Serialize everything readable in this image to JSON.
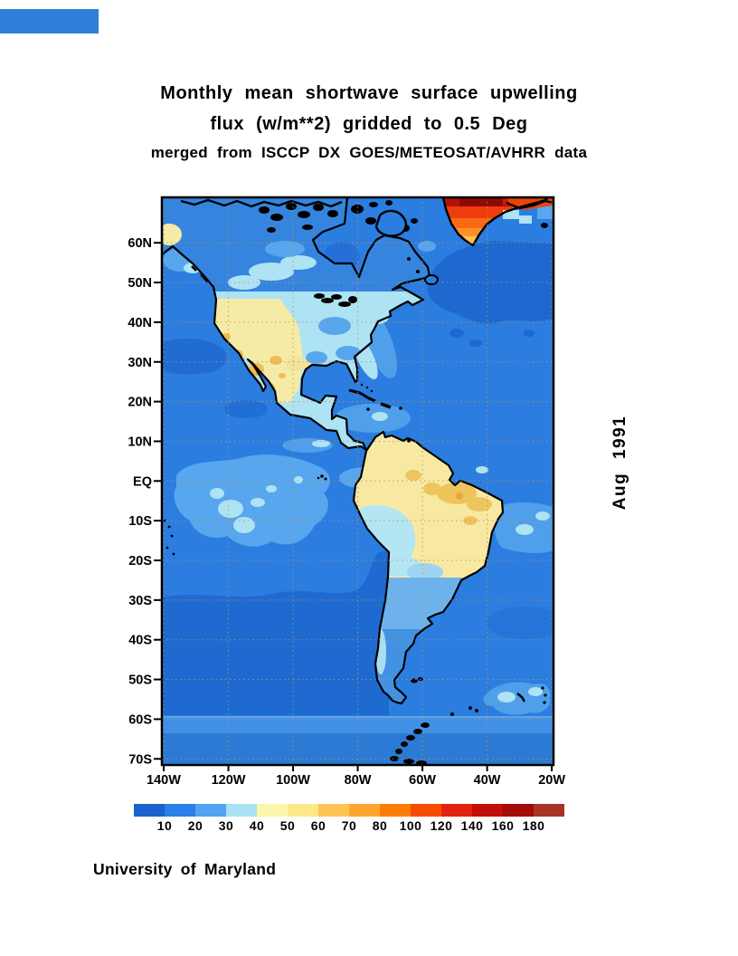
{
  "decor": {
    "top_bar_color": "#2e7fd8"
  },
  "title": {
    "line1": "Monthly mean shortwave surface upwelling",
    "line2": "flux (w/m**2) gridded to 0.5 Deg",
    "line3": "merged from ISCCP DX GOES/METEOSAT/AVHRR data"
  },
  "map": {
    "side_label": "Aug 1991",
    "lat_ticks": [
      "60N",
      "50N",
      "40N",
      "30N",
      "20N",
      "10N",
      "EQ",
      "10S",
      "20S",
      "30S",
      "40S",
      "50S",
      "60S",
      "70S"
    ],
    "lon_ticks": [
      "140W",
      "120W",
      "100W",
      "80W",
      "60W",
      "40W",
      "20W"
    ]
  },
  "colorbar": {
    "tick_labels": [
      "10",
      "20",
      "30",
      "40",
      "50",
      "60",
      "70",
      "80",
      "100",
      "120",
      "140",
      "160",
      "180"
    ],
    "segment_colors": [
      "#1a62cc",
      "#2b7fe8",
      "#54a2f2",
      "#a9e1f5",
      "#faf6ae",
      "#fde88a",
      "#fdc455",
      "#fda62e",
      "#fd7d00",
      "#f84b00",
      "#e32110",
      "#c21008",
      "#a30a08",
      "#a93326"
    ]
  },
  "footer": {
    "credit": "University of Maryland"
  },
  "chart_data": {
    "type": "heatmap",
    "title": "Monthly mean shortwave surface upwelling flux (w/m**2) gridded to 0.5 Deg",
    "subtitle": "merged from ISCCP DX GOES/METEOSAT/AVHRR data",
    "period": "Aug 1991",
    "units": "w/m**2",
    "grid_resolution_deg": 0.5,
    "x_tick_labels": [
      "140W",
      "120W",
      "100W",
      "80W",
      "60W",
      "40W",
      "20W"
    ],
    "y_tick_labels": [
      "60N",
      "50N",
      "40N",
      "30N",
      "20N",
      "10N",
      "EQ",
      "10S",
      "20S",
      "30S",
      "40S",
      "50S",
      "60S",
      "70S"
    ],
    "extent": {
      "lon_west_to_east": [
        "140W",
        "20W"
      ],
      "lat_south_to_north": [
        "70S",
        "60N"
      ]
    },
    "colorbar_bounds": [
      10,
      20,
      30,
      40,
      50,
      60,
      70,
      80,
      100,
      120,
      140,
      160,
      180
    ],
    "legend_position": "bottom",
    "grid_shown": true,
    "regions_approx_values_wm2": {
      "open_ocean": "10-30",
      "equatorial_pacific_stratus_patches": "30-40",
      "amazon_basin_land": "40-60",
      "us_southwest_and_mexico_deserts": "50-80",
      "greenland_ice_sheet": "100-180",
      "southern_ocean_band_60S": "20-30"
    },
    "credit": "University of Maryland"
  }
}
